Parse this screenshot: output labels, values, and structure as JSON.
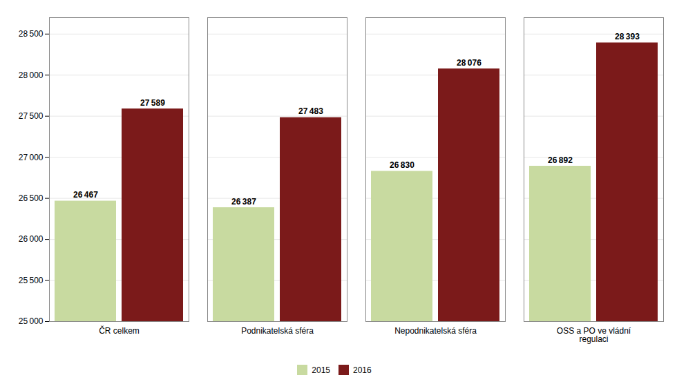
{
  "chart_data": {
    "type": "bar",
    "categories": [
      "ČR celkem",
      "Podnikatelská sféra",
      "Nepodnikatelská sféra",
      "OSS a PO ve vládní\nregulaci"
    ],
    "series": [
      {
        "name": "2015",
        "color": "#c8daa0",
        "values": [
          26467,
          26387,
          26830,
          26892
        ],
        "value_labels": [
          "26 467",
          "26 387",
          "26 830",
          "26 892"
        ]
      },
      {
        "name": "2016",
        "color": "#7b1a1a",
        "values": [
          27589,
          27483,
          28076,
          28393
        ],
        "value_labels": [
          "27 589",
          "27 483",
          "28 076",
          "28 393"
        ]
      }
    ],
    "ylim": [
      25000,
      28700
    ],
    "yticks": [
      {
        "value": 25000,
        "label": "25 000"
      },
      {
        "value": 25500,
        "label": "25 500"
      },
      {
        "value": 26000,
        "label": "26 000"
      },
      {
        "value": 26500,
        "label": "26 500"
      },
      {
        "value": 27000,
        "label": "27 000"
      },
      {
        "value": 27500,
        "label": "27 500"
      },
      {
        "value": 28000,
        "label": "28 000"
      },
      {
        "value": 28500,
        "label": "28 500"
      }
    ],
    "grid": true,
    "legend": "bottom",
    "data_labels": true
  }
}
